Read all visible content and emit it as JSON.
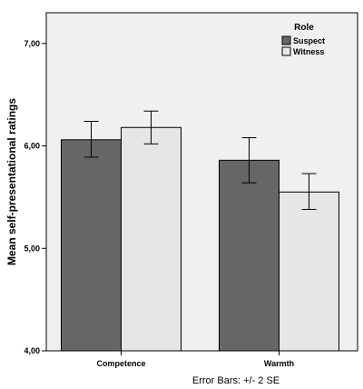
{
  "chart_data": {
    "type": "bar",
    "categories": [
      "Competence",
      "Warmth"
    ],
    "series": [
      {
        "name": "Suspect",
        "values": [
          6.06,
          5.86
        ],
        "error_low": [
          5.89,
          5.64
        ],
        "error_high": [
          6.24,
          6.08
        ],
        "color": "#666666"
      },
      {
        "name": "Witness",
        "values": [
          6.18,
          5.55
        ],
        "error_low": [
          6.02,
          5.38
        ],
        "error_high": [
          6.34,
          5.73
        ],
        "color": "#e6e6e6"
      }
    ],
    "ylabel": "Mean self-presentational ratings",
    "ylim": [
      4.0,
      7.3
    ],
    "yticks": [
      4.0,
      5.0,
      6.0,
      7.0
    ],
    "ytick_labels": [
      "4,00",
      "5,00",
      "6,00",
      "7,00"
    ],
    "legend_title": "Role",
    "legend_position": "top-right",
    "footnote": "Error Bars: +/- 2 SE",
    "grid": false,
    "background_color": "#f0f0f0"
  }
}
